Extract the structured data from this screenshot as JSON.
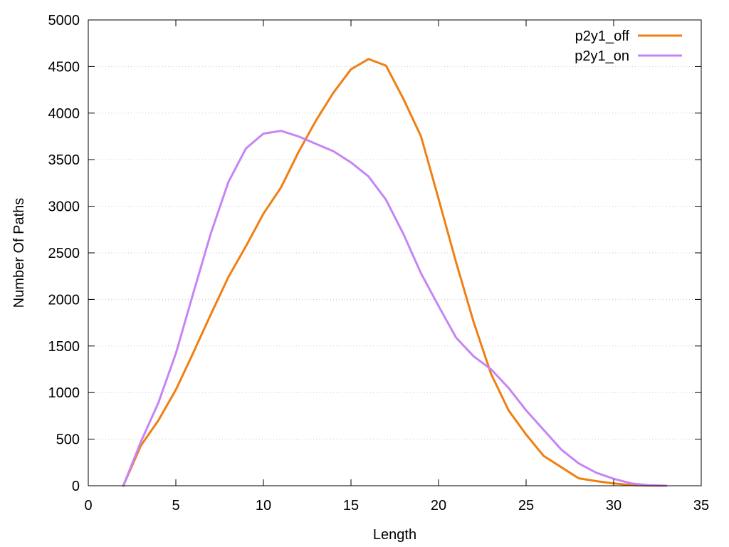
{
  "chart_data": {
    "type": "line",
    "title": "",
    "xlabel": "Length",
    "ylabel": "Number Of Paths",
    "xlim": [
      0,
      35
    ],
    "ylim": [
      0,
      5000
    ],
    "xticks": [
      0,
      5,
      10,
      15,
      20,
      25,
      30,
      35
    ],
    "yticks": [
      0,
      500,
      1000,
      1500,
      2000,
      2500,
      3000,
      3500,
      4000,
      4500,
      5000
    ],
    "grid": "horizontal dotted",
    "legend_position": "top-right",
    "series": [
      {
        "name": "p2y1_off",
        "color": "#f07f12",
        "x": [
          2,
          3,
          4,
          5,
          6,
          7,
          8,
          9,
          10,
          11,
          12,
          13,
          14,
          15,
          16,
          17,
          18,
          19,
          20,
          21,
          22,
          23,
          24,
          25,
          26,
          27,
          28,
          29,
          30,
          31,
          32,
          33
        ],
        "y": [
          0,
          430,
          700,
          1030,
          1430,
          1840,
          2240,
          2570,
          2920,
          3200,
          3580,
          3920,
          4220,
          4470,
          4580,
          4510,
          4150,
          3750,
          3080,
          2400,
          1760,
          1200,
          810,
          550,
          320,
          200,
          80,
          50,
          25,
          8,
          2,
          0
        ]
      },
      {
        "name": "p2y1_on",
        "color": "#c685f5",
        "x": [
          2,
          3,
          4,
          5,
          6,
          7,
          8,
          9,
          10,
          11,
          12,
          13,
          14,
          15,
          16,
          17,
          18,
          19,
          20,
          21,
          22,
          23,
          24,
          25,
          26,
          27,
          28,
          29,
          30,
          31,
          32,
          33
        ],
        "y": [
          0,
          470,
          890,
          1420,
          2070,
          2710,
          3260,
          3620,
          3780,
          3810,
          3750,
          3670,
          3590,
          3470,
          3320,
          3070,
          2700,
          2280,
          1930,
          1590,
          1390,
          1250,
          1050,
          810,
          600,
          390,
          240,
          140,
          75,
          25,
          5,
          0
        ]
      }
    ]
  }
}
